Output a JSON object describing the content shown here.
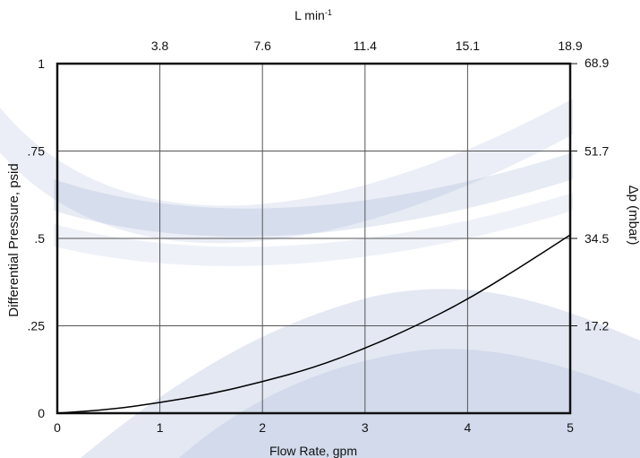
{
  "chart_data": {
    "type": "line",
    "xlabel": "Flow Rate, gpm",
    "ylabel": "Differential Pressure, psid",
    "top_axis_label": "L min",
    "top_axis_label_sup": "-1",
    "right_axis_label": "Δp (mbar)",
    "xlim": [
      0,
      5
    ],
    "ylim": [
      0,
      1
    ],
    "x_ticks": [
      {
        "value": 0,
        "label": "0"
      },
      {
        "value": 1,
        "label": "1"
      },
      {
        "value": 2,
        "label": "2"
      },
      {
        "value": 3,
        "label": "3"
      },
      {
        "value": 4,
        "label": "4"
      },
      {
        "value": 5,
        "label": "5"
      }
    ],
    "y_ticks": [
      {
        "value": 0,
        "label": "0"
      },
      {
        "value": 0.25,
        "label": ".25"
      },
      {
        "value": 0.5,
        "label": ".5"
      },
      {
        "value": 0.75,
        "label": ".75"
      },
      {
        "value": 1,
        "label": "1"
      }
    ],
    "top_ticks": [
      {
        "value": 1,
        "label": "3.8"
      },
      {
        "value": 2,
        "label": "7.6"
      },
      {
        "value": 3,
        "label": "11.4"
      },
      {
        "value": 4,
        "label": "15.1"
      },
      {
        "value": 5,
        "label": "18.9"
      }
    ],
    "right_ticks": [
      {
        "value": 0.25,
        "label": "17.2"
      },
      {
        "value": 0.5,
        "label": "34.5"
      },
      {
        "value": 0.75,
        "label": "51.7"
      },
      {
        "value": 1,
        "label": "68.9"
      }
    ],
    "grid": true,
    "series": [
      {
        "values": [
          {
            "x": 0,
            "y": 0
          },
          {
            "x": 0.5,
            "y": 0.01
          },
          {
            "x": 1,
            "y": 0.03
          },
          {
            "x": 1.5,
            "y": 0.055
          },
          {
            "x": 2,
            "y": 0.09
          },
          {
            "x": 2.5,
            "y": 0.13
          },
          {
            "x": 3,
            "y": 0.185
          },
          {
            "x": 3.5,
            "y": 0.25
          },
          {
            "x": 4,
            "y": 0.325
          },
          {
            "x": 4.5,
            "y": 0.415
          },
          {
            "x": 5,
            "y": 0.51
          }
        ]
      }
    ],
    "colors": {
      "axis": "#111111",
      "grid": "#555555",
      "line": "#000000",
      "background_art": "#8fa3cf"
    }
  }
}
